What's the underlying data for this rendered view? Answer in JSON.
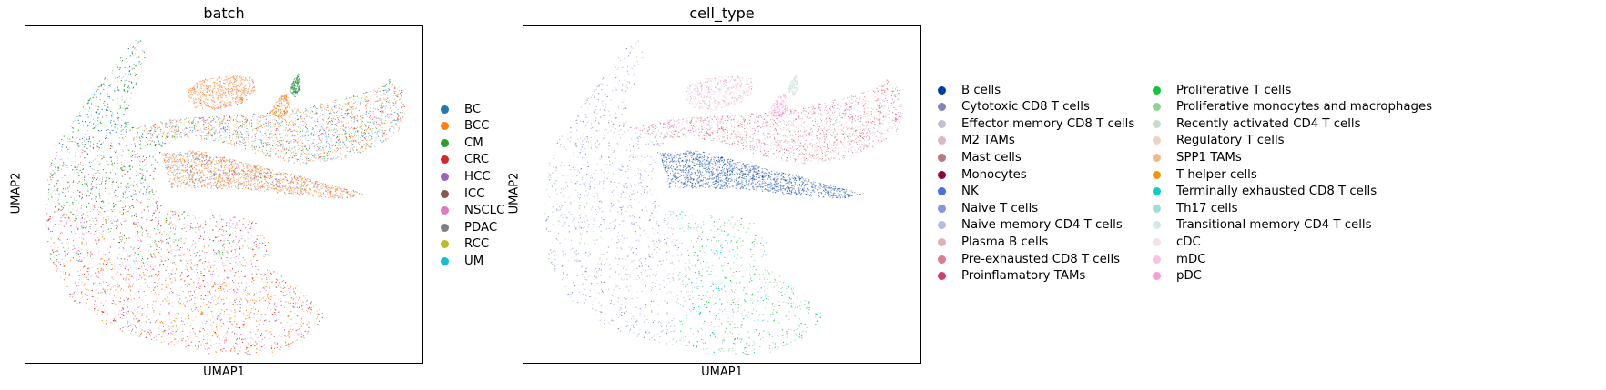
{
  "panels": [
    {
      "title": "batch",
      "xlabel": "UMAP1",
      "ylabel": "UMAP2",
      "legend": [
        {
          "label": "BC",
          "color": "#1f77b4"
        },
        {
          "label": "BCC",
          "color": "#ff7f0e"
        },
        {
          "label": "CM",
          "color": "#2ca02c"
        },
        {
          "label": "CRC",
          "color": "#d62728"
        },
        {
          "label": "HCC",
          "color": "#9467bd"
        },
        {
          "label": "ICC",
          "color": "#8c564b"
        },
        {
          "label": "NSCLC",
          "color": "#e377c2"
        },
        {
          "label": "PDAC",
          "color": "#7f7f7f"
        },
        {
          "label": "RCC",
          "color": "#bcbd22"
        },
        {
          "label": "UM",
          "color": "#17becf"
        }
      ]
    },
    {
      "title": "cell_type",
      "xlabel": "UMAP1",
      "ylabel": "UMAP2",
      "legend": [
        {
          "label": "B cells",
          "color": "#023fa5"
        },
        {
          "label": "Cytotoxic CD8 T cells",
          "color": "#7d87b9"
        },
        {
          "label": "Effector memory CD8 T cells",
          "color": "#bec1d4"
        },
        {
          "label": "M2 TAMs",
          "color": "#d6bcc0"
        },
        {
          "label": "Mast cells",
          "color": "#bb7784"
        },
        {
          "label": "Monocytes",
          "color": "#8e063b"
        },
        {
          "label": "NK",
          "color": "#4a6fe3"
        },
        {
          "label": "Naive T cells",
          "color": "#8595e1"
        },
        {
          "label": "Naive-memory CD4 T cells",
          "color": "#b5bbe3"
        },
        {
          "label": "Plasma B cells",
          "color": "#e6afb9"
        },
        {
          "label": "Pre-exhausted CD8 T cells",
          "color": "#e07b91"
        },
        {
          "label": "Proinflamatory TAMs",
          "color": "#d33f6a"
        },
        {
          "label": "Proliferative T cells",
          "color": "#11c638"
        },
        {
          "label": "Proliferative monocytes and macrophages",
          "color": "#8dd593"
        },
        {
          "label": "Recently activated CD4 T cells",
          "color": "#c6dec7"
        },
        {
          "label": "Regulatory T cells",
          "color": "#ead3c6"
        },
        {
          "label": "SPP1 TAMs",
          "color": "#f0b98d"
        },
        {
          "label": "T helper cells",
          "color": "#ef9708"
        },
        {
          "label": "Terminally exhausted CD8 T cells",
          "color": "#0fcfc0"
        },
        {
          "label": "Th17 cells",
          "color": "#9cded6"
        },
        {
          "label": "Transitional memory CD4 T cells",
          "color": "#d5eae7"
        },
        {
          "label": "cDC",
          "color": "#f3e1eb"
        },
        {
          "label": "mDC",
          "color": "#f6c4e1"
        },
        {
          "label": "pDC",
          "color": "#f79cd4"
        }
      ]
    }
  ],
  "chart_data": [
    {
      "type": "scatter",
      "title": "batch",
      "xlabel": "UMAP1",
      "ylabel": "UMAP2",
      "ticks": "none",
      "grid": false,
      "legend_position": "right",
      "series": [
        {
          "name": "BC"
        },
        {
          "name": "BCC"
        },
        {
          "name": "CM"
        },
        {
          "name": "CRC"
        },
        {
          "name": "HCC"
        },
        {
          "name": "ICC"
        },
        {
          "name": "NSCLC"
        },
        {
          "name": "PDAC"
        },
        {
          "name": "RCC"
        },
        {
          "name": "UM"
        }
      ]
    },
    {
      "type": "scatter",
      "title": "cell_type",
      "xlabel": "UMAP1",
      "ylabel": "UMAP2",
      "ticks": "none",
      "grid": false,
      "legend_position": "right",
      "series": [
        {
          "name": "B cells"
        },
        {
          "name": "Cytotoxic CD8 T cells"
        },
        {
          "name": "Effector memory CD8 T cells"
        },
        {
          "name": "M2 TAMs"
        },
        {
          "name": "Mast cells"
        },
        {
          "name": "Monocytes"
        },
        {
          "name": "NK"
        },
        {
          "name": "Naive T cells"
        },
        {
          "name": "Naive-memory CD4 T cells"
        },
        {
          "name": "Plasma B cells"
        },
        {
          "name": "Pre-exhausted CD8 T cells"
        },
        {
          "name": "Proinflamatory TAMs"
        },
        {
          "name": "Proliferative T cells"
        },
        {
          "name": "Proliferative monocytes and macrophages"
        },
        {
          "name": "Recently activated CD4 T cells"
        },
        {
          "name": "Regulatory T cells"
        },
        {
          "name": "SPP1 TAMs"
        },
        {
          "name": "T helper cells"
        },
        {
          "name": "Terminally exhausted CD8 T cells"
        },
        {
          "name": "Th17 cells"
        },
        {
          "name": "Transitional memory CD4 T cells"
        },
        {
          "name": "cDC"
        },
        {
          "name": "mDC"
        },
        {
          "name": "pDC"
        }
      ]
    }
  ]
}
